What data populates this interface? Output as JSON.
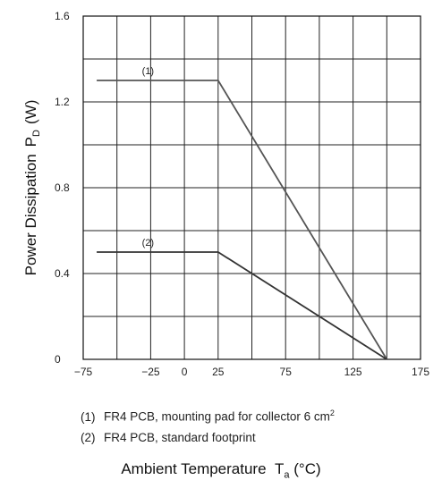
{
  "chart_data": {
    "type": "line",
    "title": "",
    "xlabel": "Ambient Temperature",
    "xlabel_symbol": "T",
    "xlabel_subscript": "a",
    "xlabel_unit": "(°C)",
    "ylabel": "Power Dissipation",
    "ylabel_symbol": "P",
    "ylabel_subscript": "D",
    "ylabel_unit": "(W)",
    "xlim": [
      -75,
      175
    ],
    "ylim": [
      0,
      1.6
    ],
    "x_ticks": [
      {
        "value": -75,
        "label": "−75"
      },
      {
        "value": -25,
        "label": "−25"
      },
      {
        "value": 0,
        "label": "0"
      },
      {
        "value": 25,
        "label": "25"
      },
      {
        "value": 75,
        "label": "75"
      },
      {
        "value": 125,
        "label": "125"
      },
      {
        "value": 175,
        "label": "175"
      }
    ],
    "y_ticks": [
      {
        "value": 0,
        "label": "0"
      },
      {
        "value": 0.4,
        "label": "0.4"
      },
      {
        "value": 0.8,
        "label": "0.8"
      },
      {
        "value": 1.2,
        "label": "1.2"
      },
      {
        "value": 1.6,
        "label": "1.6"
      }
    ],
    "grid": true,
    "series": [
      {
        "name": "(1)",
        "x": [
          -65,
          25,
          150
        ],
        "y": [
          1.3,
          1.3,
          0
        ],
        "color": "#555555",
        "label_at": {
          "x": -27,
          "y": 1.33
        }
      },
      {
        "name": "(2)",
        "x": [
          -65,
          25,
          150
        ],
        "y": [
          0.5,
          0.5,
          0
        ],
        "color": "#333333",
        "label_at": {
          "x": -27,
          "y": 0.53
        }
      }
    ],
    "notes": [
      {
        "num": "(1)",
        "text": "FR4 PCB, mounting pad for collector 6 cm",
        "sup": "2"
      },
      {
        "num": "(2)",
        "text": "FR4 PCB, standard footprint",
        "sup": ""
      }
    ]
  }
}
